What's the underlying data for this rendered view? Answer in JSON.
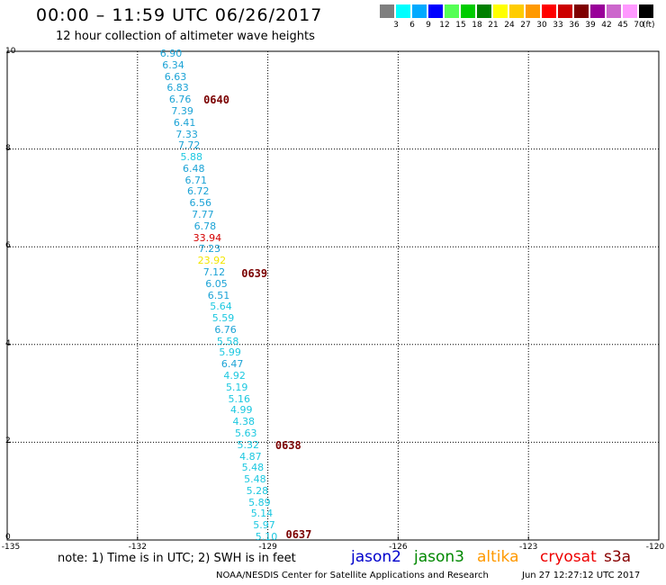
{
  "header": {
    "title": "00:00 – 11:59 UTC 06/26/2017",
    "subtitle": "12 hour collection of altimeter wave heights"
  },
  "legend": {
    "swatches": [
      {
        "color": "#7f7f7f",
        "label": "3"
      },
      {
        "color": "#00ffff",
        "label": "6"
      },
      {
        "color": "#00aaff",
        "label": "9"
      },
      {
        "color": "#0000ff",
        "label": "12"
      },
      {
        "color": "#55ff55",
        "label": "15"
      },
      {
        "color": "#00cc00",
        "label": "18"
      },
      {
        "color": "#008000",
        "label": "21"
      },
      {
        "color": "#ffff00",
        "label": "24"
      },
      {
        "color": "#ffcc00",
        "label": "27"
      },
      {
        "color": "#ff9900",
        "label": "30"
      },
      {
        "color": "#ff0000",
        "label": "33"
      },
      {
        "color": "#cc0000",
        "label": "36"
      },
      {
        "color": "#7f0000",
        "label": "39"
      },
      {
        "color": "#990099",
        "label": "42"
      },
      {
        "color": "#cc66cc",
        "label": "45"
      },
      {
        "color": "#ff99ff",
        "label": "70"
      },
      {
        "color": "#000000",
        "label": ""
      }
    ],
    "unit": "(ft)"
  },
  "map": {
    "x_ticks": [
      "-135",
      "-132",
      "-129",
      "-126",
      "-123",
      "-120"
    ],
    "y_ticks": [
      "10",
      "8",
      "6",
      "4",
      "2",
      "0"
    ],
    "grid": true,
    "grid_style": "dotted"
  },
  "observations": [
    {
      "value": "6.90",
      "color": "#1ca3d6"
    },
    {
      "value": "6.34",
      "color": "#1ca3d6"
    },
    {
      "value": "6.63",
      "color": "#1ca3d6"
    },
    {
      "value": "6.83",
      "color": "#1ca3d6"
    },
    {
      "value": "6.76",
      "color": "#1ca3d6"
    },
    {
      "value": "7.39",
      "color": "#1ca3d6"
    },
    {
      "value": "6.41",
      "color": "#1ca3d6"
    },
    {
      "value": "7.33",
      "color": "#1ca3d6"
    },
    {
      "value": "7.72",
      "color": "#1ca3d6"
    },
    {
      "value": "5.88",
      "color": "#1cc8e0"
    },
    {
      "value": "6.48",
      "color": "#1ca3d6"
    },
    {
      "value": "6.71",
      "color": "#1ca3d6"
    },
    {
      "value": "6.72",
      "color": "#1ca3d6"
    },
    {
      "value": "6.56",
      "color": "#1ca3d6"
    },
    {
      "value": "7.77",
      "color": "#1ca3d6"
    },
    {
      "value": "6.78",
      "color": "#1ca3d6"
    },
    {
      "value": "33.94",
      "color": "#d40000"
    },
    {
      "value": "7.23",
      "color": "#1ca3d6"
    },
    {
      "value": "23.92",
      "color": "#f2e600"
    },
    {
      "value": "7.12",
      "color": "#1ca3d6"
    },
    {
      "value": "6.05",
      "color": "#1ca3d6"
    },
    {
      "value": "6.51",
      "color": "#1ca3d6"
    },
    {
      "value": "5.64",
      "color": "#1cc8e0"
    },
    {
      "value": "5.59",
      "color": "#1cc8e0"
    },
    {
      "value": "6.76",
      "color": "#1ca3d6"
    },
    {
      "value": "5.58",
      "color": "#1cc8e0"
    },
    {
      "value": "5.99",
      "color": "#1cc8e0"
    },
    {
      "value": "6.47",
      "color": "#1ca3d6"
    },
    {
      "value": "4.92",
      "color": "#1cc8e0"
    },
    {
      "value": "5.19",
      "color": "#1cc8e0"
    },
    {
      "value": "5.16",
      "color": "#1cc8e0"
    },
    {
      "value": "4.99",
      "color": "#1cc8e0"
    },
    {
      "value": "4.38",
      "color": "#1cc8e0"
    },
    {
      "value": "5.63",
      "color": "#1cc8e0"
    },
    {
      "value": "5.32",
      "color": "#1cc8e0"
    },
    {
      "value": "4.87",
      "color": "#1cc8e0"
    },
    {
      "value": "5.48",
      "color": "#1cc8e0"
    },
    {
      "value": "5.48",
      "color": "#1cc8e0"
    },
    {
      "value": "5.28",
      "color": "#1cc8e0"
    },
    {
      "value": "5.89",
      "color": "#1cc8e0"
    },
    {
      "value": "5.14",
      "color": "#1cc8e0"
    },
    {
      "value": "5.97",
      "color": "#1cc8e0"
    },
    {
      "value": "5.10",
      "color": "#1cc8e0"
    }
  ],
  "track_times": [
    "0640",
    "0639",
    "0638",
    "0637"
  ],
  "footer": {
    "note": "note:  1) Time is in UTC;  2) SWH is in feet",
    "satellites": [
      {
        "name": "jason2",
        "color": "#0000cc"
      },
      {
        "name": "jason3",
        "color": "#008800"
      },
      {
        "name": "altika",
        "color": "#ff9900"
      },
      {
        "name": "cryosat",
        "color": "#ee0000"
      },
      {
        "name": "s3a",
        "color": "#880000"
      }
    ],
    "credit": "NOAA/NESDIS Center for Satellite Applications and Research",
    "timestamp": "Jun 27 12:27:12 UTC 2017"
  }
}
